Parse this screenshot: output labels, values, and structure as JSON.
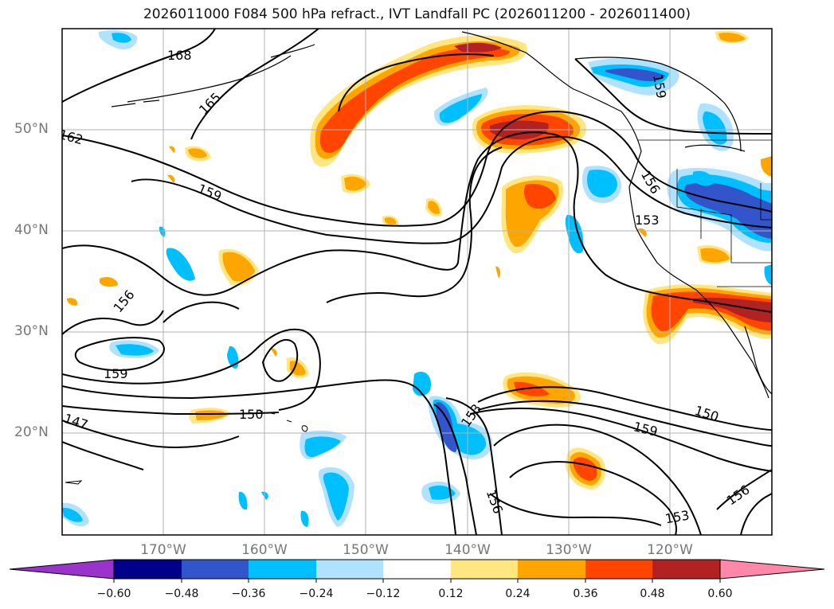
{
  "title": "2026011000 F084 500 hPa refract., IVT Landfall PC (2026011200 - 2026011400)",
  "lat_labels": [
    "50°N",
    "40°N",
    "30°N",
    "20°N"
  ],
  "lon_labels": [
    "170°W",
    "160°W",
    "150°W",
    "140°W",
    "130°W",
    "120°W"
  ],
  "contour_labels": [
    "168",
    "165",
    "162",
    "159",
    "156",
    "159",
    "147",
    "150",
    "153",
    "156",
    "153",
    "156",
    "150",
    "159",
    "153",
    "156",
    "159"
  ],
  "colorbar": {
    "ticks": [
      "−0.60",
      "−0.48",
      "−0.36",
      "−0.24",
      "−0.12",
      "0.12",
      "0.24",
      "0.36",
      "0.48",
      "0.60"
    ],
    "colors": [
      "#9933cc",
      "#00008b",
      "#3355cc",
      "#00bfff",
      "#b0e2ff",
      "#ffffff",
      "#ffe680",
      "#ffa500",
      "#ff4500",
      "#b22222",
      "#ff88aa"
    ]
  },
  "colors": {
    "land_outline": "#000000",
    "grid": "#b0b0b0",
    "contour": "#000000"
  }
}
